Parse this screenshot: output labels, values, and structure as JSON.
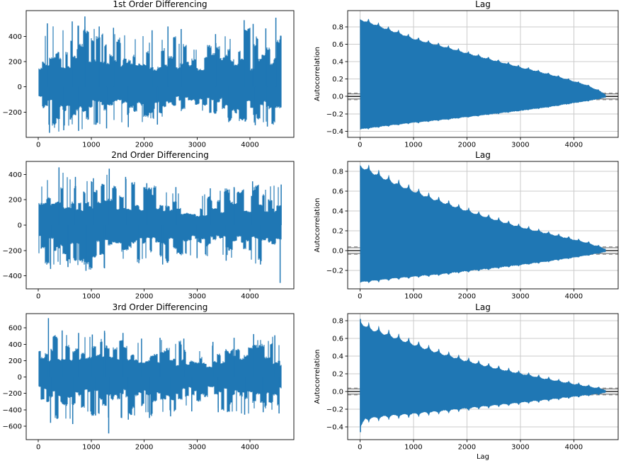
{
  "figure": {
    "background": "#ffffff",
    "series_color": "#1f77b4",
    "grid_color": "#cbcbcb",
    "axis_color": "#1a1a1a",
    "zero_line_color": "#000000",
    "conf_solid_color": "#777777",
    "conf_dashed_color": "#999999"
  },
  "chart_data": [
    {
      "id": "diff1",
      "type": "line",
      "subtype": "noise-series",
      "title": "1st Order Differencing",
      "xlabel": "",
      "ylabel": "",
      "grid": false,
      "xlim": [
        -230,
        4830
      ],
      "ylim": [
        -401,
        606
      ],
      "xticks": [
        0,
        1000,
        2000,
        3000,
        4000
      ],
      "xticklabels": [
        "0",
        "1000",
        "2000",
        "3000",
        "4000"
      ],
      "yticks": [
        -200,
        0,
        200,
        400
      ],
      "yticklabels": [
        "−200",
        "0",
        "200",
        "400"
      ],
      "n_points": 4600,
      "envelope_upper": [
        [
          0,
          300
        ],
        [
          120,
          470
        ],
        [
          300,
          490
        ],
        [
          600,
          510
        ],
        [
          900,
          555
        ],
        [
          1200,
          470
        ],
        [
          1500,
          440
        ],
        [
          1800,
          430
        ],
        [
          2100,
          395
        ],
        [
          2400,
          430
        ],
        [
          2700,
          350
        ],
        [
          2950,
          300
        ],
        [
          3200,
          380
        ],
        [
          3500,
          400
        ],
        [
          3800,
          490
        ],
        [
          4100,
          450
        ],
        [
          4350,
          470
        ],
        [
          4550,
          545
        ],
        [
          4600,
          430
        ]
      ],
      "envelope_lower": [
        [
          0,
          -160
        ],
        [
          150,
          -345
        ],
        [
          350,
          -360
        ],
        [
          600,
          -335
        ],
        [
          900,
          -350
        ],
        [
          1200,
          -315
        ],
        [
          1500,
          -305
        ],
        [
          1800,
          -330
        ],
        [
          2100,
          -295
        ],
        [
          2400,
          -265
        ],
        [
          2700,
          -210
        ],
        [
          2950,
          -140
        ],
        [
          3200,
          -225
        ],
        [
          3500,
          -265
        ],
        [
          3800,
          -285
        ],
        [
          4100,
          -300
        ],
        [
          4400,
          -315
        ],
        [
          4600,
          -265
        ]
      ],
      "spikes_upper": [
        [
          170,
          505
        ],
        [
          640,
          520
        ],
        [
          880,
          560
        ],
        [
          1150,
          480
        ],
        [
          1420,
          470
        ],
        [
          2150,
          450
        ],
        [
          2450,
          480
        ],
        [
          2700,
          460
        ],
        [
          3350,
          420
        ],
        [
          3890,
          530
        ],
        [
          4060,
          500
        ],
        [
          4300,
          465
        ],
        [
          4490,
          550
        ]
      ],
      "spikes_lower": [
        [
          210,
          -365
        ],
        [
          480,
          -345
        ],
        [
          760,
          -350
        ],
        [
          1290,
          -330
        ],
        [
          1700,
          -320
        ],
        [
          2250,
          -300
        ],
        [
          3600,
          -280
        ],
        [
          4100,
          -305
        ],
        [
          4330,
          -315
        ]
      ]
    },
    {
      "id": "acf1",
      "type": "area",
      "subtype": "autocorrelation",
      "title": "Lag",
      "xlabel": "",
      "ylabel": "Autocorrelation",
      "grid": true,
      "xlim": [
        -230,
        4830
      ],
      "ylim": [
        -0.47,
        0.985
      ],
      "xticks": [
        0,
        1000,
        2000,
        3000,
        4000
      ],
      "xticklabels": [
        "0",
        "1000",
        "2000",
        "3000",
        "4000"
      ],
      "yticks": [
        -0.4,
        -0.2,
        0,
        0.2,
        0.4,
        0.6,
        0.8
      ],
      "yticklabels": [
        "−0.4",
        "−0.2",
        "0.0",
        "0.2",
        "0.4",
        "0.6",
        "0.8"
      ],
      "n_points": 4600,
      "upper": [
        [
          0,
          0.875
        ],
        [
          250,
          0.825
        ],
        [
          500,
          0.765
        ],
        [
          750,
          0.715
        ],
        [
          1000,
          0.655
        ],
        [
          1250,
          0.615
        ],
        [
          1500,
          0.575
        ],
        [
          1750,
          0.535
        ],
        [
          2000,
          0.49
        ],
        [
          2250,
          0.45
        ],
        [
          2500,
          0.41
        ],
        [
          2750,
          0.37
        ],
        [
          3000,
          0.33
        ],
        [
          3250,
          0.295
        ],
        [
          3500,
          0.255
        ],
        [
          3750,
          0.215
        ],
        [
          4000,
          0.17
        ],
        [
          4250,
          0.125
        ],
        [
          4500,
          0.055
        ],
        [
          4600,
          0.02
        ]
      ],
      "lower": [
        [
          0,
          -0.375
        ],
        [
          500,
          -0.335
        ],
        [
          1000,
          -0.3
        ],
        [
          1500,
          -0.27
        ],
        [
          2000,
          -0.235
        ],
        [
          2500,
          -0.2
        ],
        [
          3000,
          -0.163
        ],
        [
          3500,
          -0.123
        ],
        [
          4000,
          -0.075
        ],
        [
          4300,
          -0.048
        ],
        [
          4600,
          -0.012
        ]
      ],
      "seasonal_bump": {
        "period": 187,
        "offset": 160,
        "upper_shoulder": 0.018,
        "upper_spike": 0.032,
        "lower_shoulder": 0.005,
        "lower_spike": 0.009
      },
      "confidence": {
        "solid": 0.029,
        "dashed": 0.038
      },
      "zero_line": 0.0
    },
    {
      "id": "diff2",
      "type": "line",
      "subtype": "noise-series",
      "title": "2nd Order Differencing",
      "xlabel": "",
      "ylabel": "",
      "grid": false,
      "xlim": [
        -230,
        4830
      ],
      "ylim": [
        -502,
        502
      ],
      "xticks": [
        0,
        1000,
        2000,
        3000,
        4000
      ],
      "xticklabels": [
        "0",
        "1000",
        "2000",
        "3000",
        "4000"
      ],
      "yticks": [
        -400,
        -200,
        0,
        200,
        400
      ],
      "yticklabels": [
        "−400",
        "−200",
        "0",
        "200",
        "400"
      ],
      "n_points": 4600,
      "envelope_upper": [
        [
          0,
          260
        ],
        [
          150,
          375
        ],
        [
          400,
          450
        ],
        [
          700,
          380
        ],
        [
          1000,
          360
        ],
        [
          1300,
          440
        ],
        [
          1600,
          375
        ],
        [
          1900,
          330
        ],
        [
          2200,
          310
        ],
        [
          2500,
          295
        ],
        [
          2800,
          270
        ],
        [
          3050,
          220
        ],
        [
          3300,
          290
        ],
        [
          3600,
          295
        ],
        [
          3900,
          330
        ],
        [
          4100,
          340
        ],
        [
          4400,
          310
        ],
        [
          4600,
          320
        ]
      ],
      "envelope_lower": [
        [
          0,
          -250
        ],
        [
          150,
          -340
        ],
        [
          400,
          -330
        ],
        [
          700,
          -320
        ],
        [
          1000,
          -355
        ],
        [
          1300,
          -335
        ],
        [
          1600,
          -310
        ],
        [
          1900,
          -300
        ],
        [
          2200,
          -305
        ],
        [
          2500,
          -290
        ],
        [
          2800,
          -250
        ],
        [
          3050,
          -215
        ],
        [
          3300,
          -270
        ],
        [
          3600,
          -275
        ],
        [
          3900,
          -300
        ],
        [
          4200,
          -310
        ],
        [
          4500,
          -320
        ],
        [
          4600,
          -300
        ]
      ],
      "spikes_upper": [
        [
          390,
          455
        ],
        [
          700,
          380
        ],
        [
          1040,
          370
        ],
        [
          1340,
          445
        ],
        [
          1650,
          380
        ],
        [
          2050,
          330
        ],
        [
          2600,
          300
        ],
        [
          3250,
          290
        ],
        [
          3700,
          300
        ],
        [
          4050,
          345
        ],
        [
          4590,
          320
        ]
      ],
      "spikes_lower": [
        [
          230,
          -345
        ],
        [
          560,
          -330
        ],
        [
          900,
          -360
        ],
        [
          1250,
          -340
        ],
        [
          1900,
          -300
        ],
        [
          2350,
          -310
        ],
        [
          3000,
          -260
        ],
        [
          3550,
          -280
        ],
        [
          4200,
          -310
        ],
        [
          4570,
          -455
        ]
      ]
    },
    {
      "id": "acf2",
      "type": "area",
      "subtype": "autocorrelation",
      "title": "Lag",
      "xlabel": "",
      "ylabel": "Autocorrelation",
      "grid": true,
      "xlim": [
        -230,
        4830
      ],
      "ylim": [
        -0.386,
        0.9
      ],
      "xticks": [
        0,
        1000,
        2000,
        3000,
        4000
      ],
      "xticklabels": [
        "0",
        "1000",
        "2000",
        "3000",
        "4000"
      ],
      "yticks": [
        -0.2,
        0,
        0.2,
        0.4,
        0.6,
        0.8
      ],
      "yticklabels": [
        "−0.2",
        "0.0",
        "0.2",
        "0.4",
        "0.6",
        "0.8"
      ],
      "n_points": 4600,
      "upper": [
        [
          0,
          0.84
        ],
        [
          250,
          0.77
        ],
        [
          500,
          0.705
        ],
        [
          750,
          0.645
        ],
        [
          1000,
          0.59
        ],
        [
          1250,
          0.535
        ],
        [
          1500,
          0.487
        ],
        [
          1750,
          0.44
        ],
        [
          2000,
          0.395
        ],
        [
          2250,
          0.35
        ],
        [
          2500,
          0.31
        ],
        [
          2750,
          0.27
        ],
        [
          3000,
          0.232
        ],
        [
          3250,
          0.2
        ],
        [
          3500,
          0.168
        ],
        [
          3750,
          0.138
        ],
        [
          4000,
          0.106
        ],
        [
          4250,
          0.075
        ],
        [
          4500,
          0.032
        ],
        [
          4600,
          0.015
        ]
      ],
      "lower": [
        [
          0,
          -0.315
        ],
        [
          500,
          -0.285
        ],
        [
          1000,
          -0.26
        ],
        [
          1500,
          -0.235
        ],
        [
          2000,
          -0.205
        ],
        [
          2500,
          -0.175
        ],
        [
          3000,
          -0.142
        ],
        [
          3500,
          -0.108
        ],
        [
          4000,
          -0.068
        ],
        [
          4300,
          -0.042
        ],
        [
          4600,
          -0.012
        ]
      ],
      "seasonal_bump": {
        "period": 187,
        "offset": 165,
        "upper_shoulder": 0.03,
        "upper_spike": 0.048,
        "lower_shoulder": 0.01,
        "lower_spike": 0.016
      },
      "confidence": {
        "solid": 0.029,
        "dashed": 0.038
      },
      "zero_line": 0.0
    },
    {
      "id": "diff3",
      "type": "line",
      "subtype": "noise-series",
      "title": "3rd Order Differencing",
      "xlabel": "",
      "ylabel": "",
      "grid": false,
      "xlim": [
        -230,
        4830
      ],
      "ylim": [
        -765,
        775
      ],
      "xticks": [
        0,
        1000,
        2000,
        3000,
        4000
      ],
      "xticklabels": [
        "0",
        "1000",
        "2000",
        "3000",
        "4000"
      ],
      "yticks": [
        -600,
        -400,
        -200,
        0,
        200,
        400,
        600
      ],
      "yticklabels": [
        "−600",
        "−400",
        "−200",
        "0",
        "200",
        "400",
        "600"
      ],
      "n_points": 4600,
      "envelope_upper": [
        [
          0,
          330
        ],
        [
          150,
          430
        ],
        [
          400,
          560
        ],
        [
          700,
          535
        ],
        [
          1000,
          515
        ],
        [
          1300,
          560
        ],
        [
          1600,
          535
        ],
        [
          1900,
          465
        ],
        [
          2200,
          475
        ],
        [
          2500,
          465
        ],
        [
          2800,
          430
        ],
        [
          3050,
          330
        ],
        [
          3300,
          420
        ],
        [
          3600,
          470
        ],
        [
          3900,
          500
        ],
        [
          4150,
          520
        ],
        [
          4450,
          505
        ],
        [
          4600,
          340
        ]
      ],
      "envelope_lower": [
        [
          0,
          -300
        ],
        [
          150,
          -450
        ],
        [
          400,
          -555
        ],
        [
          700,
          -560
        ],
        [
          1000,
          -460
        ],
        [
          1300,
          -560
        ],
        [
          1600,
          -515
        ],
        [
          1900,
          -490
        ],
        [
          2200,
          -480
        ],
        [
          2500,
          -470
        ],
        [
          2800,
          -400
        ],
        [
          3050,
          -270
        ],
        [
          3300,
          -400
        ],
        [
          3600,
          -430
        ],
        [
          3900,
          -455
        ],
        [
          4150,
          -430
        ],
        [
          4450,
          -435
        ],
        [
          4600,
          -300
        ]
      ],
      "spikes_upper": [
        [
          190,
          720
        ],
        [
          450,
          570
        ],
        [
          760,
          540
        ],
        [
          1020,
          520
        ],
        [
          1250,
          565
        ],
        [
          1600,
          540
        ],
        [
          1950,
          470
        ],
        [
          2300,
          480
        ],
        [
          2750,
          470
        ],
        [
          3300,
          430
        ],
        [
          3700,
          480
        ],
        [
          4070,
          525
        ],
        [
          4470,
          510
        ]
      ],
      "spikes_lower": [
        [
          230,
          -560
        ],
        [
          650,
          -575
        ],
        [
          1080,
          -470
        ],
        [
          1330,
          -690
        ],
        [
          1700,
          -520
        ],
        [
          2100,
          -500
        ],
        [
          2500,
          -480
        ],
        [
          2900,
          -420
        ],
        [
          3400,
          -430
        ],
        [
          3900,
          -460
        ],
        [
          4250,
          -430
        ],
        [
          4550,
          -445
        ]
      ]
    },
    {
      "id": "acf3",
      "type": "area",
      "subtype": "autocorrelation",
      "title": "Lag",
      "xlabel": "Lag",
      "ylabel": "Autocorrelation",
      "grid": true,
      "xlim": [
        -230,
        4830
      ],
      "ylim": [
        -0.544,
        0.88
      ],
      "xticks": [
        0,
        1000,
        2000,
        3000,
        4000
      ],
      "xticklabels": [
        "0",
        "1000",
        "2000",
        "3000",
        "4000"
      ],
      "yticks": [
        -0.4,
        -0.2,
        0,
        0.2,
        0.4,
        0.6,
        0.8
      ],
      "yticklabels": [
        "−0.4",
        "−0.2",
        "0.0",
        "0.2",
        "0.4",
        "0.6",
        "0.8"
      ],
      "n_points": 4600,
      "upper": [
        [
          0,
          0.77
        ],
        [
          150,
          0.7
        ],
        [
          500,
          0.63
        ],
        [
          1000,
          0.52
        ],
        [
          1500,
          0.42
        ],
        [
          2000,
          0.335
        ],
        [
          2500,
          0.26
        ],
        [
          3000,
          0.195
        ],
        [
          3500,
          0.135
        ],
        [
          4000,
          0.08
        ],
        [
          4300,
          0.05
        ],
        [
          4600,
          0.015
        ]
      ],
      "lower": [
        [
          0,
          -0.4
        ],
        [
          100,
          -0.3
        ],
        [
          500,
          -0.27
        ],
        [
          1000,
          -0.245
        ],
        [
          1500,
          -0.215
        ],
        [
          2000,
          -0.185
        ],
        [
          2500,
          -0.152
        ],
        [
          3000,
          -0.122
        ],
        [
          3500,
          -0.09
        ],
        [
          4000,
          -0.055
        ],
        [
          4300,
          -0.035
        ],
        [
          4600,
          -0.012
        ]
      ],
      "lag0_spike": {
        "upper": 0.82,
        "lower": -0.46
      },
      "seasonal_bump": {
        "period": 187,
        "offset": 165,
        "upper_shoulder": 0.038,
        "upper_spike": 0.055,
        "lower_shoulder": 0.025,
        "lower_spike": 0.038
      },
      "confidence": {
        "solid": 0.029,
        "dashed": 0.038
      },
      "zero_line": 0.0
    }
  ]
}
